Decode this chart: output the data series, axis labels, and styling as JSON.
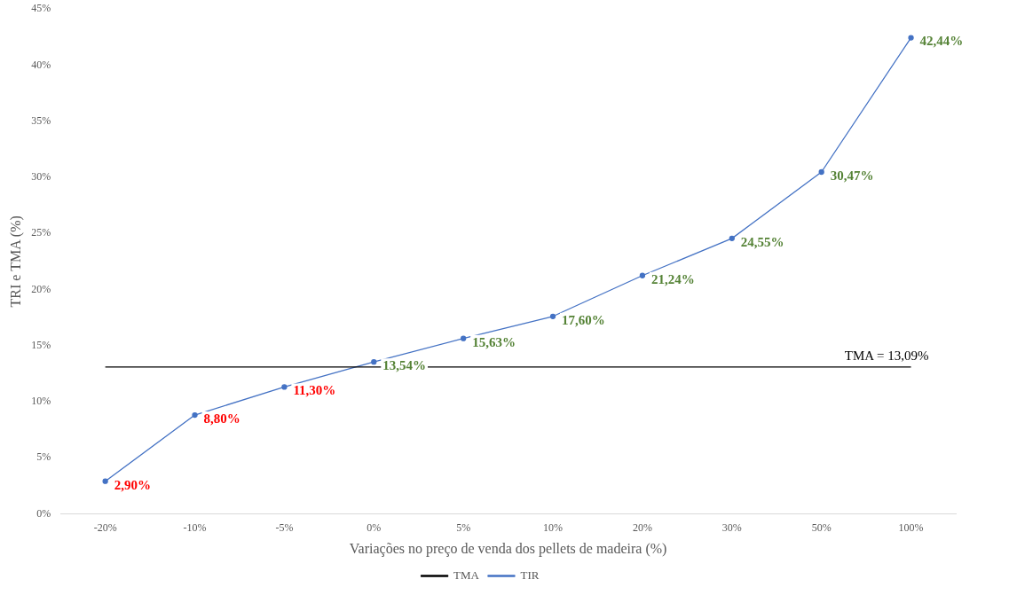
{
  "chart_data": {
    "type": "line",
    "xlabel": "Variações no preço de venda dos pellets de madeira (%)",
    "ylabel": "TRI e TMA (%)",
    "categories": [
      "-20%",
      "-10%",
      "-5%",
      "0%",
      "5%",
      "10%",
      "20%",
      "30%",
      "50%",
      "100%"
    ],
    "series": [
      {
        "name": "TMA",
        "color": "#000000",
        "marker": "none",
        "values": [
          13.09,
          13.09,
          13.09,
          13.09,
          13.09,
          13.09,
          13.09,
          13.09,
          13.09,
          13.09
        ]
      },
      {
        "name": "TIR",
        "color": "#4472c4",
        "marker": "circle",
        "values": [
          2.9,
          8.8,
          11.3,
          13.54,
          15.63,
          17.6,
          21.24,
          24.55,
          30.47,
          42.44
        ],
        "value_labels": [
          "2,90%",
          "8,80%",
          "11,30%",
          "13,54%",
          "15,63%",
          "17,60%",
          "21,24%",
          "24,55%",
          "30,47%",
          "42,44%"
        ]
      }
    ],
    "ylim": [
      0,
      45
    ],
    "yticks": [
      {
        "value": 0,
        "label": "0%"
      },
      {
        "value": 5,
        "label": "5%"
      },
      {
        "value": 10,
        "label": "10%"
      },
      {
        "value": 15,
        "label": "15%"
      },
      {
        "value": 20,
        "label": "20%"
      },
      {
        "value": 25,
        "label": "25%"
      },
      {
        "value": 30,
        "label": "30%"
      },
      {
        "value": 35,
        "label": "35%"
      },
      {
        "value": 40,
        "label": "40%"
      },
      {
        "value": 45,
        "label": "45%"
      }
    ],
    "annotations": [
      {
        "text": "TMA = 13,09%",
        "x": "100%",
        "y": 13.09
      }
    ],
    "grid": false,
    "legend": "bottom",
    "line_style": "solid"
  }
}
